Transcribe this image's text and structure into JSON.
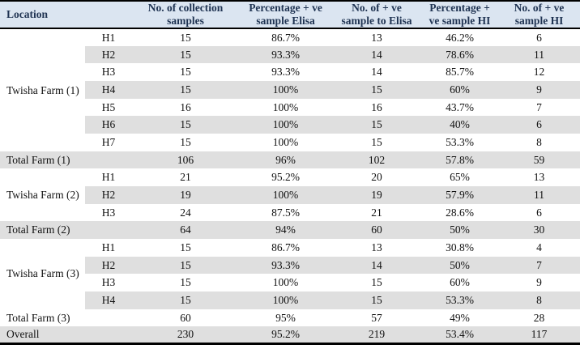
{
  "table": {
    "header": {
      "location_label": "Location",
      "data_columns": [
        "No. of collection\nsamples",
        "Percentage + ve\nsample Elisa",
        "No. of + ve\nsample to Elisa",
        "Percentage +\nve sample HI",
        "No. of + ve\nsample HI"
      ]
    },
    "rows": [
      {
        "kind": "data",
        "group": "Twisha Farm (1)",
        "group_span": 7,
        "house": "H1",
        "values": [
          "15",
          "86.7%",
          "13",
          "46.2%",
          "6"
        ]
      },
      {
        "kind": "data",
        "house": "H2",
        "values": [
          "15",
          "93.3%",
          "14",
          "78.6%",
          "11"
        ]
      },
      {
        "kind": "data",
        "house": "H3",
        "values": [
          "15",
          "93.3%",
          "14",
          "85.7%",
          "12"
        ]
      },
      {
        "kind": "data",
        "house": "H4",
        "values": [
          "15",
          "100%",
          "15",
          "60%",
          "9"
        ]
      },
      {
        "kind": "data",
        "house": "H5",
        "values": [
          "16",
          "100%",
          "16",
          "43.7%",
          "7"
        ]
      },
      {
        "kind": "data",
        "house": "H6",
        "values": [
          "15",
          "100%",
          "15",
          "40%",
          "6"
        ]
      },
      {
        "kind": "data",
        "house": "H7",
        "values": [
          "15",
          "100%",
          "15",
          "53.3%",
          "8"
        ]
      },
      {
        "kind": "summary",
        "label": "Total Farm (1)",
        "values": [
          "106",
          "96%",
          "102",
          "57.8%",
          "59"
        ]
      },
      {
        "kind": "data",
        "group": "Twisha Farm (2)",
        "group_span": 3,
        "house": "H1",
        "values": [
          "21",
          "95.2%",
          "20",
          "65%",
          "13"
        ]
      },
      {
        "kind": "data",
        "house": "H2",
        "values": [
          "19",
          "100%",
          "19",
          "57.9%",
          "11"
        ]
      },
      {
        "kind": "data",
        "house": "H3",
        "values": [
          "24",
          "87.5%",
          "21",
          "28.6%",
          "6"
        ]
      },
      {
        "kind": "summary",
        "label": "Total Farm (2)",
        "values": [
          "64",
          "94%",
          "60",
          "50%",
          "30"
        ]
      },
      {
        "kind": "data",
        "group": "Twisha Farm (3)",
        "group_span": 4,
        "house": "H1",
        "values": [
          "15",
          "86.7%",
          "13",
          "30.8%",
          "4"
        ]
      },
      {
        "kind": "data",
        "house": "H2",
        "values": [
          "15",
          "93.3%",
          "14",
          "50%",
          "7"
        ]
      },
      {
        "kind": "data",
        "house": "H3",
        "values": [
          "15",
          "100%",
          "15",
          "60%",
          "9"
        ]
      },
      {
        "kind": "data",
        "house": "H4",
        "values": [
          "15",
          "100%",
          "15",
          "53.3%",
          "8"
        ]
      },
      {
        "kind": "summary",
        "label": "Total Farm (3)",
        "values": [
          "60",
          "95%",
          "57",
          "49%",
          "28"
        ]
      },
      {
        "kind": "summary",
        "label": "Overall",
        "values": [
          "230",
          "95.2%",
          "219",
          "53.4%",
          "117"
        ]
      }
    ],
    "colors": {
      "header_bg": "#dbe5f1",
      "stripe_bg": "#dfdfdf",
      "header_text": "#1f3352",
      "body_text": "#111111",
      "border": "#000000"
    }
  }
}
